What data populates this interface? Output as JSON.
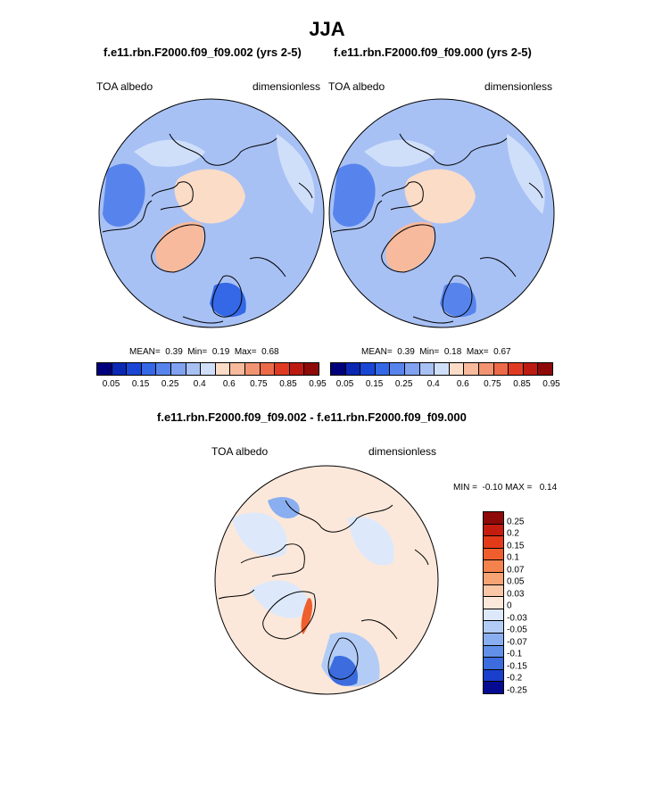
{
  "title": "JJA",
  "panel1": {
    "subtitle": "f.e11.rbn.F2000.f09_f09.002 (yrs 2-5)",
    "var_label": "TOA albedo",
    "units_label": "dimensionless",
    "stats": "MEAN=  0.39  Min=  0.19  Max=  0.68"
  },
  "panel2": {
    "subtitle": "f.e11.rbn.F2000.f09_f09.000 (yrs 2-5)",
    "var_label": "TOA albedo",
    "units_label": "dimensionless",
    "stats": "MEAN=  0.39  Min=  0.18  Max=  0.67"
  },
  "panel3": {
    "subtitle": "f.e11.rbn.F2000.f09_f09.002 - f.e11.rbn.F2000.f09_f09.000",
    "var_label": "TOA albedo",
    "units_label": "dimensionless",
    "stats": "MIN =  -0.10 MAX =   0.14"
  },
  "colorbar_abs": {
    "colors": [
      "#00007d",
      "#0b28b4",
      "#1a46d6",
      "#3468e6",
      "#5784ec",
      "#80a2f1",
      "#a8c1f5",
      "#d0dff9",
      "#fbdcc7",
      "#f7ba9c",
      "#f29472",
      "#ec6a48",
      "#e03a22",
      "#bd1b12",
      "#8e0a08"
    ],
    "tick_labels": [
      "0.05",
      "0.15",
      "0.25",
      "0.4",
      "0.6",
      "0.75",
      "0.85",
      "0.95"
    ]
  },
  "colorbar_diff": {
    "colors": [
      "#8e0a08",
      "#c41c0e",
      "#e33a1a",
      "#f05e2e",
      "#f4824d",
      "#f7a373",
      "#f9c7a6",
      "#fce8da",
      "#dde9fb",
      "#b2ccf6",
      "#8aaff0",
      "#628fe8",
      "#3c6cde",
      "#1a3fcc",
      "#050b90"
    ],
    "tick_labels": [
      "0.25",
      "0.2",
      "0.15",
      "0.1",
      "0.07",
      "0.05",
      "0.03",
      "0",
      "-0.03",
      "-0.05",
      "-0.07",
      "-0.1",
      "-0.15",
      "-0.2",
      "-0.25"
    ]
  }
}
